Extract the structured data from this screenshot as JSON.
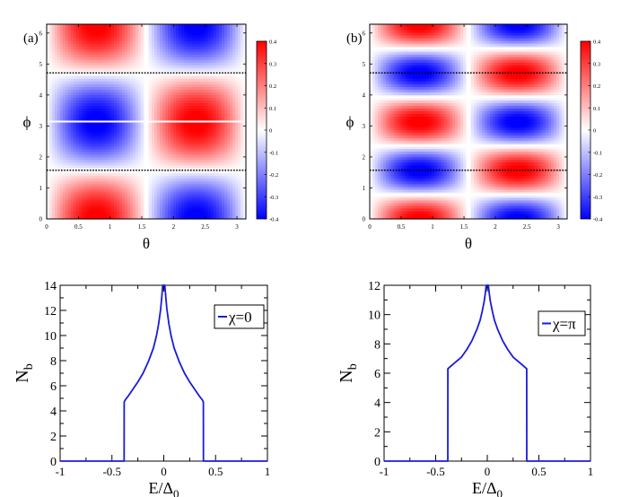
{
  "chart_data": [
    {
      "type": "heatmap",
      "panel_label": "(a)",
      "xlabel": "θ",
      "ylabel": "ϕ",
      "xlim": [
        0,
        3.14159
      ],
      "ylim": [
        0,
        6.28318
      ],
      "x_ticks": [
        "0",
        "0.5",
        "1",
        "1.5",
        "2",
        "2.5",
        "3"
      ],
      "y_ticks": [
        "0",
        "1",
        "2",
        "3",
        "4",
        "5",
        "6"
      ],
      "colorbar": {
        "min": -0.4,
        "max": 0.4,
        "ticks": [
          "-0.4",
          "-0.3",
          "-0.2",
          "-0.1",
          "0",
          "0.1",
          "0.2",
          "0.3",
          "0.4"
        ]
      },
      "cos_multiplier_phi": 1,
      "white_lines_phi": [
        3.14159
      ],
      "dotted_lines_phi": [
        1.5708,
        4.7124
      ],
      "white_line_theta": 1.5708
    },
    {
      "type": "heatmap",
      "panel_label": "(b)",
      "xlabel": "θ",
      "ylabel": "ϕ",
      "xlim": [
        0,
        3.14159
      ],
      "ylim": [
        0,
        6.28318
      ],
      "x_ticks": [
        "0",
        "0.5",
        "1",
        "1.5",
        "2",
        "2.5",
        "3"
      ],
      "y_ticks": [
        "0",
        "1",
        "2",
        "3",
        "4",
        "5",
        "6"
      ],
      "colorbar": {
        "min": -0.4,
        "max": 0.4,
        "ticks": [
          "-0.4",
          "-0.3",
          "-0.2",
          "-0.1",
          "0",
          "0.1",
          "0.2",
          "0.3",
          "0.4"
        ]
      },
      "cos_multiplier_phi": 2,
      "white_lines_phi": [
        0.7854,
        2.3562,
        3.927,
        5.4978
      ],
      "dotted_lines_phi": [
        1.5708,
        4.7124
      ],
      "white_line_theta": 1.5708
    },
    {
      "type": "line",
      "xlabel": "E/Δ",
      "xlabel_sub": "0",
      "ylabel": "N",
      "ylabel_sub": "b",
      "xlim": [
        -1,
        1
      ],
      "ylim": [
        0,
        14
      ],
      "x_ticks": [
        "-1",
        "-0.5",
        "0",
        "0.5",
        "1"
      ],
      "y_ticks": [
        "0",
        "2",
        "4",
        "6",
        "8",
        "10",
        "12",
        "14"
      ],
      "legend": "χ=0",
      "color": "#1a1adc",
      "x": [
        -1,
        -0.3825,
        -0.382,
        -0.37,
        -0.35,
        -0.3,
        -0.25,
        -0.2,
        -0.15,
        -0.1,
        -0.07,
        -0.05,
        -0.03,
        -0.02,
        -0.01,
        -0.004,
        0.004,
        0.01,
        0.02,
        0.03,
        0.05,
        0.07,
        0.1,
        0.15,
        0.2,
        0.25,
        0.3,
        0.35,
        0.37,
        0.382,
        0.3825,
        1
      ],
      "y": [
        0,
        0,
        4.7,
        4.9,
        5.1,
        5.7,
        6.3,
        7.0,
        7.9,
        9.0,
        10.0,
        10.9,
        12.1,
        13.0,
        14.0,
        14.0,
        14.0,
        14.0,
        13.0,
        12.1,
        10.9,
        10.0,
        9.0,
        7.9,
        7.0,
        6.3,
        5.7,
        5.1,
        4.9,
        4.7,
        0,
        0
      ]
    },
    {
      "type": "line",
      "xlabel": "E/Δ",
      "xlabel_sub": "0",
      "ylabel": "N",
      "ylabel_sub": "b",
      "xlim": [
        -1,
        1
      ],
      "ylim": [
        0,
        12
      ],
      "x_ticks": [
        "-1",
        "-0.5",
        "0",
        "0.5",
        "1"
      ],
      "y_ticks": [
        "0",
        "2",
        "4",
        "6",
        "8",
        "10",
        "12"
      ],
      "legend": "χ=π",
      "color": "#1a1adc",
      "x": [
        -1,
        -0.3825,
        -0.382,
        -0.35,
        -0.3,
        -0.25,
        -0.2,
        -0.15,
        -0.1,
        -0.07,
        -0.05,
        -0.03,
        -0.02,
        -0.01,
        -0.004,
        0.004,
        0.01,
        0.02,
        0.03,
        0.05,
        0.07,
        0.1,
        0.15,
        0.2,
        0.25,
        0.3,
        0.35,
        0.382,
        0.3825,
        1
      ],
      "y": [
        0,
        0,
        6.3,
        6.5,
        6.8,
        7.1,
        7.6,
        8.2,
        9.0,
        9.6,
        10.2,
        10.9,
        11.4,
        12.0,
        12.0,
        12.0,
        12.0,
        11.4,
        10.9,
        10.2,
        9.6,
        9.0,
        8.2,
        7.6,
        7.1,
        6.8,
        6.5,
        6.3,
        0,
        0
      ]
    }
  ]
}
